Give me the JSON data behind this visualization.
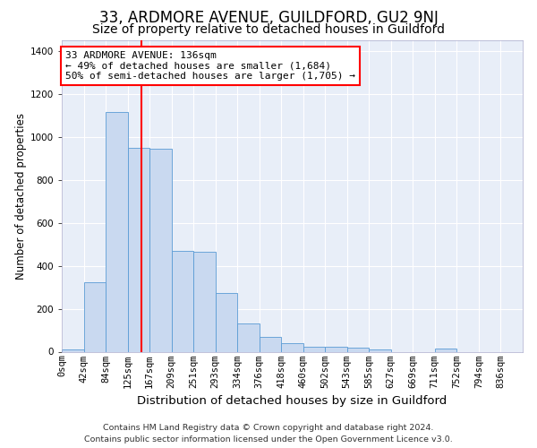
{
  "title_line1": "33, ARDMORE AVENUE, GUILDFORD, GU2 9NJ",
  "title_line2": "Size of property relative to detached houses in Guildford",
  "xlabel": "Distribution of detached houses by size in Guildford",
  "ylabel": "Number of detached properties",
  "footer_line1": "Contains HM Land Registry data © Crown copyright and database right 2024.",
  "footer_line2": "Contains public sector information licensed under the Open Government Licence v3.0.",
  "categories": [
    "0sqm",
    "42sqm",
    "84sqm",
    "125sqm",
    "167sqm",
    "209sqm",
    "251sqm",
    "293sqm",
    "334sqm",
    "376sqm",
    "418sqm",
    "460sqm",
    "502sqm",
    "543sqm",
    "585sqm",
    "627sqm",
    "669sqm",
    "711sqm",
    "752sqm",
    "794sqm",
    "836sqm"
  ],
  "bar_heights": [
    10,
    325,
    1115,
    950,
    945,
    470,
    465,
    275,
    130,
    70,
    40,
    25,
    25,
    20,
    10,
    0,
    0,
    15,
    0,
    0,
    0
  ],
  "bar_color": "#c9d9f0",
  "bar_edge_color": "#5a9bd5",
  "red_line_x": 3.62,
  "annotation_text": "33 ARDMORE AVENUE: 136sqm\n← 49% of detached houses are smaller (1,684)\n50% of semi-detached houses are larger (1,705) →",
  "annotation_box_color": "white",
  "annotation_border_color": "red",
  "ylim": [
    0,
    1450
  ],
  "yticks": [
    0,
    200,
    400,
    600,
    800,
    1000,
    1200,
    1400
  ],
  "bg_color": "#e8eef8",
  "grid_color": "white",
  "title1_fontsize": 12,
  "title2_fontsize": 10,
  "xlabel_fontsize": 9.5,
  "ylabel_fontsize": 8.5,
  "tick_fontsize": 7.5,
  "footer_fontsize": 6.8,
  "annot_fontsize": 8
}
